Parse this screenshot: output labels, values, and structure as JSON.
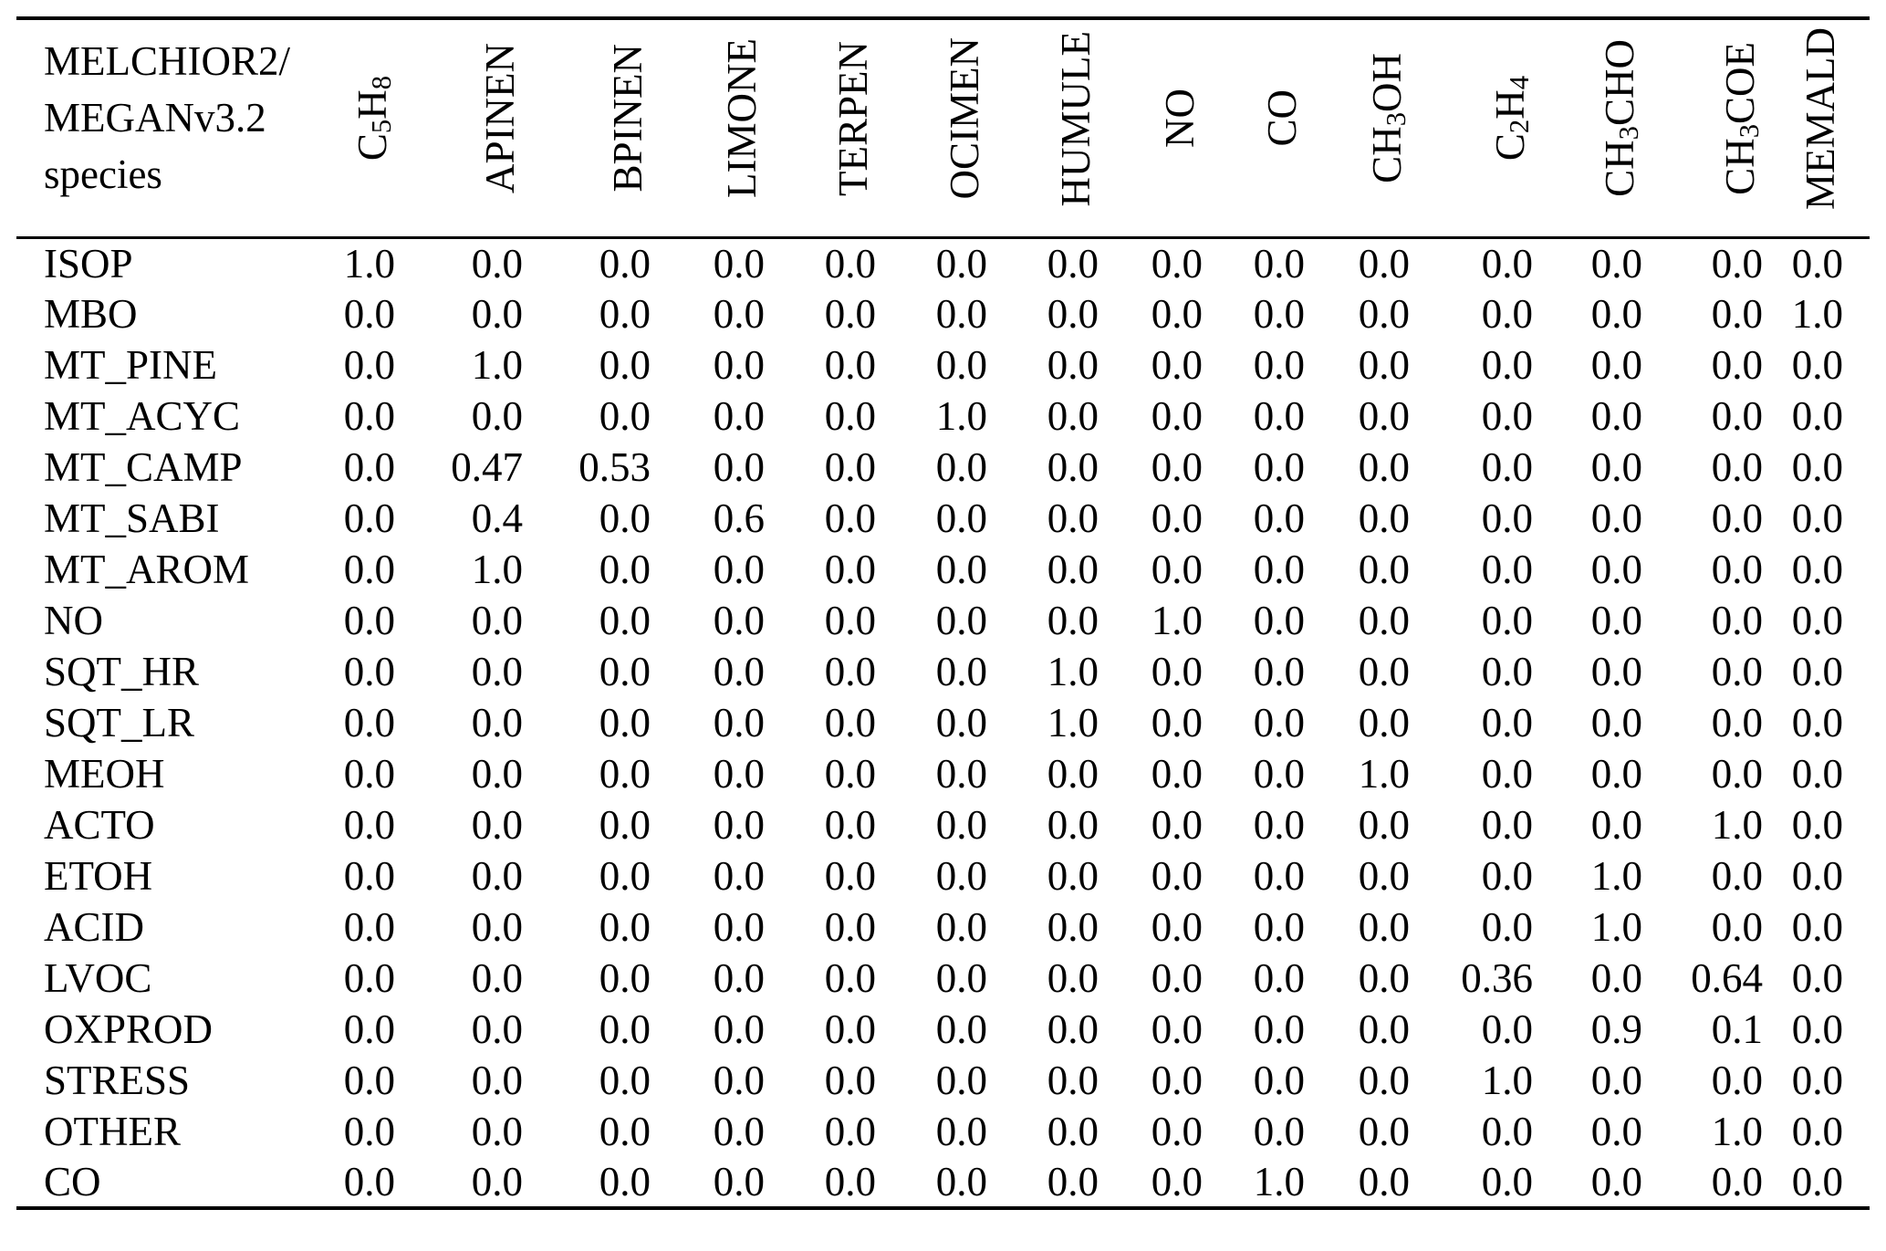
{
  "table": {
    "corner_header": {
      "lines": [
        "MELCHIOR2/",
        "MEGANv3.2",
        "species"
      ]
    },
    "columns": [
      {
        "id": "C5H8",
        "label_text": "C5H8",
        "label_html": "C<sub>5</sub>H<sub>8</sub>"
      },
      {
        "id": "APINEN",
        "label_text": "APINEN",
        "label_html": "APINEN"
      },
      {
        "id": "BPINEN",
        "label_text": "BPINEN",
        "label_html": "BPINEN"
      },
      {
        "id": "LIMONE",
        "label_text": "LIMONE",
        "label_html": "LIMONE"
      },
      {
        "id": "TERPEN",
        "label_text": "TERPEN",
        "label_html": "TERPEN"
      },
      {
        "id": "OCIMEN",
        "label_text": "OCIMEN",
        "label_html": "OCIMEN"
      },
      {
        "id": "HUMULE",
        "label_text": "HUMULE",
        "label_html": "HUMULE"
      },
      {
        "id": "NO",
        "label_text": "NO",
        "label_html": "NO"
      },
      {
        "id": "CO",
        "label_text": "CO",
        "label_html": "CO"
      },
      {
        "id": "CH3OH",
        "label_text": "CH3OH",
        "label_html": "CH<sub>3</sub>OH"
      },
      {
        "id": "C2H4",
        "label_text": "C2H4",
        "label_html": "C<sub>2</sub>H<sub>4</sub>"
      },
      {
        "id": "CH3CHO",
        "label_text": "CH3CHO",
        "label_html": "CH<sub>3</sub>CHO"
      },
      {
        "id": "CH3COE",
        "label_text": "CH3COE",
        "label_html": "CH<sub>3</sub>COE"
      },
      {
        "id": "MEMALD",
        "label_text": "MEMALD",
        "label_html": "MEMALD"
      }
    ],
    "rows": [
      {
        "label": "ISOP",
        "values": [
          "1.0",
          "0.0",
          "0.0",
          "0.0",
          "0.0",
          "0.0",
          "0.0",
          "0.0",
          "0.0",
          "0.0",
          "0.0",
          "0.0",
          "0.0",
          "0.0"
        ]
      },
      {
        "label": "MBO",
        "values": [
          "0.0",
          "0.0",
          "0.0",
          "0.0",
          "0.0",
          "0.0",
          "0.0",
          "0.0",
          "0.0",
          "0.0",
          "0.0",
          "0.0",
          "0.0",
          "1.0"
        ]
      },
      {
        "label": "MT_PINE",
        "values": [
          "0.0",
          "1.0",
          "0.0",
          "0.0",
          "0.0",
          "0.0",
          "0.0",
          "0.0",
          "0.0",
          "0.0",
          "0.0",
          "0.0",
          "0.0",
          "0.0"
        ]
      },
      {
        "label": "MT_ACYC",
        "values": [
          "0.0",
          "0.0",
          "0.0",
          "0.0",
          "0.0",
          "1.0",
          "0.0",
          "0.0",
          "0.0",
          "0.0",
          "0.0",
          "0.0",
          "0.0",
          "0.0"
        ]
      },
      {
        "label": "MT_CAMP",
        "values": [
          "0.0",
          "0.47",
          "0.53",
          "0.0",
          "0.0",
          "0.0",
          "0.0",
          "0.0",
          "0.0",
          "0.0",
          "0.0",
          "0.0",
          "0.0",
          "0.0"
        ]
      },
      {
        "label": "MT_SABI",
        "values": [
          "0.0",
          "0.4",
          "0.0",
          "0.6",
          "0.0",
          "0.0",
          "0.0",
          "0.0",
          "0.0",
          "0.0",
          "0.0",
          "0.0",
          "0.0",
          "0.0"
        ]
      },
      {
        "label": "MT_AROM",
        "values": [
          "0.0",
          "1.0",
          "0.0",
          "0.0",
          "0.0",
          "0.0",
          "0.0",
          "0.0",
          "0.0",
          "0.0",
          "0.0",
          "0.0",
          "0.0",
          "0.0"
        ]
      },
      {
        "label": "NO",
        "values": [
          "0.0",
          "0.0",
          "0.0",
          "0.0",
          "0.0",
          "0.0",
          "0.0",
          "1.0",
          "0.0",
          "0.0",
          "0.0",
          "0.0",
          "0.0",
          "0.0"
        ]
      },
      {
        "label": "SQT_HR",
        "values": [
          "0.0",
          "0.0",
          "0.0",
          "0.0",
          "0.0",
          "0.0",
          "1.0",
          "0.0",
          "0.0",
          "0.0",
          "0.0",
          "0.0",
          "0.0",
          "0.0"
        ]
      },
      {
        "label": "SQT_LR",
        "values": [
          "0.0",
          "0.0",
          "0.0",
          "0.0",
          "0.0",
          "0.0",
          "1.0",
          "0.0",
          "0.0",
          "0.0",
          "0.0",
          "0.0",
          "0.0",
          "0.0"
        ]
      },
      {
        "label": "MEOH",
        "values": [
          "0.0",
          "0.0",
          "0.0",
          "0.0",
          "0.0",
          "0.0",
          "0.0",
          "0.0",
          "0.0",
          "1.0",
          "0.0",
          "0.0",
          "0.0",
          "0.0"
        ]
      },
      {
        "label": "ACTO",
        "values": [
          "0.0",
          "0.0",
          "0.0",
          "0.0",
          "0.0",
          "0.0",
          "0.0",
          "0.0",
          "0.0",
          "0.0",
          "0.0",
          "0.0",
          "1.0",
          "0.0"
        ]
      },
      {
        "label": "ETOH",
        "values": [
          "0.0",
          "0.0",
          "0.0",
          "0.0",
          "0.0",
          "0.0",
          "0.0",
          "0.0",
          "0.0",
          "0.0",
          "0.0",
          "1.0",
          "0.0",
          "0.0"
        ]
      },
      {
        "label": "ACID",
        "values": [
          "0.0",
          "0.0",
          "0.0",
          "0.0",
          "0.0",
          "0.0",
          "0.0",
          "0.0",
          "0.0",
          "0.0",
          "0.0",
          "1.0",
          "0.0",
          "0.0"
        ]
      },
      {
        "label": "LVOC",
        "values": [
          "0.0",
          "0.0",
          "0.0",
          "0.0",
          "0.0",
          "0.0",
          "0.0",
          "0.0",
          "0.0",
          "0.0",
          "0.36",
          "0.0",
          "0.64",
          "0.0"
        ]
      },
      {
        "label": "OXPROD",
        "values": [
          "0.0",
          "0.0",
          "0.0",
          "0.0",
          "0.0",
          "0.0",
          "0.0",
          "0.0",
          "0.0",
          "0.0",
          "0.0",
          "0.9",
          "0.1",
          "0.0"
        ]
      },
      {
        "label": "STRESS",
        "values": [
          "0.0",
          "0.0",
          "0.0",
          "0.0",
          "0.0",
          "0.0",
          "0.0",
          "0.0",
          "0.0",
          "0.0",
          "1.0",
          "0.0",
          "0.0",
          "0.0"
        ]
      },
      {
        "label": "OTHER",
        "values": [
          "0.0",
          "0.0",
          "0.0",
          "0.0",
          "0.0",
          "0.0",
          "0.0",
          "0.0",
          "0.0",
          "0.0",
          "0.0",
          "0.0",
          "1.0",
          "0.0"
        ]
      },
      {
        "label": "CO",
        "values": [
          "0.0",
          "0.0",
          "0.0",
          "0.0",
          "0.0",
          "0.0",
          "0.0",
          "0.0",
          "1.0",
          "0.0",
          "0.0",
          "0.0",
          "0.0",
          "0.0"
        ]
      }
    ]
  },
  "colors": {
    "text": "#000000",
    "background": "#ffffff",
    "rule": "#000000"
  }
}
